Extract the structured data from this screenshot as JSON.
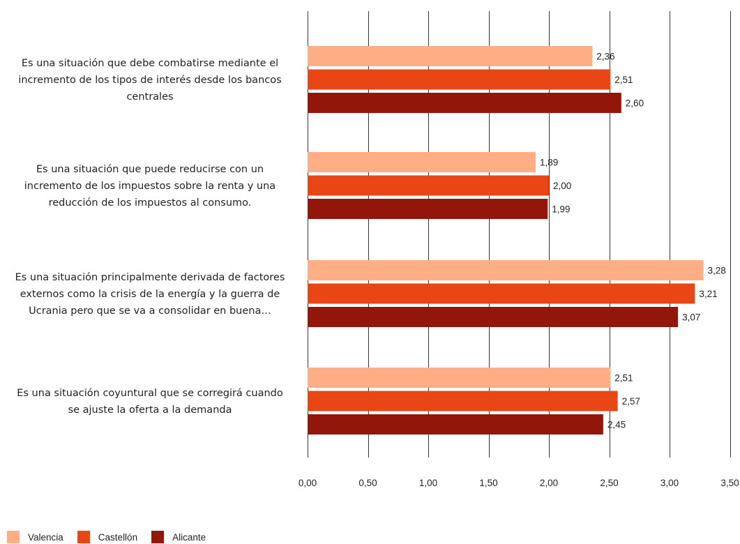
{
  "chart_data": {
    "type": "bar",
    "orientation": "horizontal",
    "categories": [
      "Es una situación que debe combatirse mediante el incremento de los tipos de interés desde los bancos centrales",
      "Es una situación que puede reducirse con un incremento de los impuestos sobre la renta y una reducción de los impuestos al consumo.",
      "Es una situación principalmente derivada de factores externos como la crisis de la energía y la guerra de Ucrania pero que se va a consolidar en buena…",
      "Es una situación coyuntural que se corregirá cuando se ajuste la oferta a la demanda"
    ],
    "category_lines": [
      [
        "Es una situación que debe combatirse mediante el",
        "incremento de los tipos de interés desde los bancos",
        "centrales"
      ],
      [
        "Es una situación que puede reducirse con un",
        "incremento de los impuestos sobre la renta y una",
        "reducción de los impuestos al consumo."
      ],
      [
        "Es una situación principalmente derivada de factores",
        "externos como la crisis de la energía y la guerra de",
        "Ucrania pero que se va a consolidar en buena…"
      ],
      [
        "Es una situación coyuntural que se corregirá cuando",
        "se ajuste la oferta a la demanda"
      ]
    ],
    "series": [
      {
        "name": "Valencia",
        "color": "#FFAD85",
        "values": [
          2.36,
          1.89,
          3.28,
          2.51
        ],
        "labels": [
          "2,36",
          "1,89",
          "3,28",
          "2,51"
        ]
      },
      {
        "name": "Castellón",
        "color": "#E84614",
        "values": [
          2.51,
          2.0,
          3.21,
          2.57
        ],
        "labels": [
          "2,51",
          "2,00",
          "3,21",
          "2,57"
        ]
      },
      {
        "name": "Alicante",
        "color": "#92170A",
        "values": [
          2.6,
          1.99,
          3.07,
          2.45
        ],
        "labels": [
          "2,60",
          "1,99",
          "3,07",
          "2,45"
        ]
      }
    ],
    "xlim": [
      0,
      3.5
    ],
    "x_ticks": [
      0,
      0.5,
      1.0,
      1.5,
      2.0,
      2.5,
      3.0,
      3.5
    ],
    "x_tick_labels": [
      "0,00",
      "0,50",
      "1,00",
      "1,50",
      "2,00",
      "2,50",
      "3,00",
      "3,50"
    ],
    "grid": true,
    "legend_position": "bottom-left"
  }
}
